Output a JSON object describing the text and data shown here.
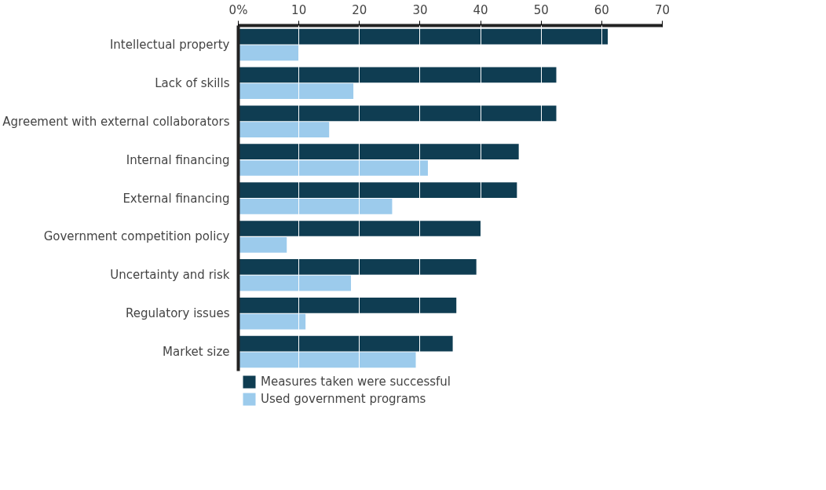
{
  "chart_data": {
    "type": "bar",
    "orientation": "horizontal",
    "categories": [
      "Intellectual property",
      "Lack of skills",
      "Agreement with external collaborators",
      "Internal financing",
      "External financing",
      "Government competition policy",
      "Uncertainty and risk",
      "Regulatory issues",
      "Market size"
    ],
    "series": [
      {
        "name": "Measures taken were successful",
        "color": "#0f3d52",
        "values": [
          61,
          52.5,
          52.5,
          46.3,
          46,
          40,
          39.3,
          36,
          35.4
        ]
      },
      {
        "name": "Used government programs",
        "color": "#9ccbec",
        "values": [
          10,
          19,
          15,
          31.3,
          25.4,
          8,
          18.6,
          11.1,
          29.3
        ]
      }
    ],
    "xlim": [
      0,
      70
    ],
    "xticks": [
      {
        "value": 0,
        "label": "0%"
      },
      10,
      20,
      30,
      40,
      50,
      60,
      70
    ],
    "grid": "x",
    "legend": "bottom left"
  }
}
